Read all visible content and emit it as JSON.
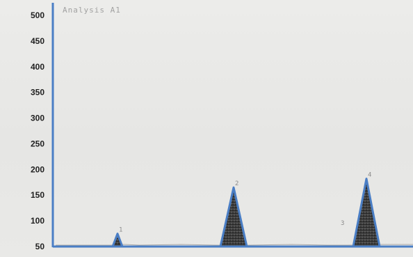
{
  "chart_data": {
    "type": "line",
    "title": "Analysis A1",
    "ylim": [
      50,
      500
    ],
    "yticks": [
      "500",
      "450",
      "400",
      "350",
      "300",
      "250",
      "200",
      "150",
      "100",
      "50"
    ],
    "series": [
      {
        "values": [
          {
            "label": "",
            "apex": 75
          },
          {
            "label": "",
            "apex": 165
          },
          {
            "label": "",
            "apex": 180
          },
          {
            "label": "3",
            "apex": 90
          }
        ]
      }
    ],
    "peaks": [
      {
        "label": "1",
        "apex": 75,
        "width": 14
      },
      {
        "label": "2",
        "apex": 165,
        "width": 38
      },
      {
        "label": "4",
        "apex": 182,
        "width": 38
      }
    ],
    "annotations": [
      "3"
    ],
    "colors": {
      "axis": "#4a7ec5",
      "fill": "#1f1f1f",
      "background": "#e9e9e7"
    }
  }
}
